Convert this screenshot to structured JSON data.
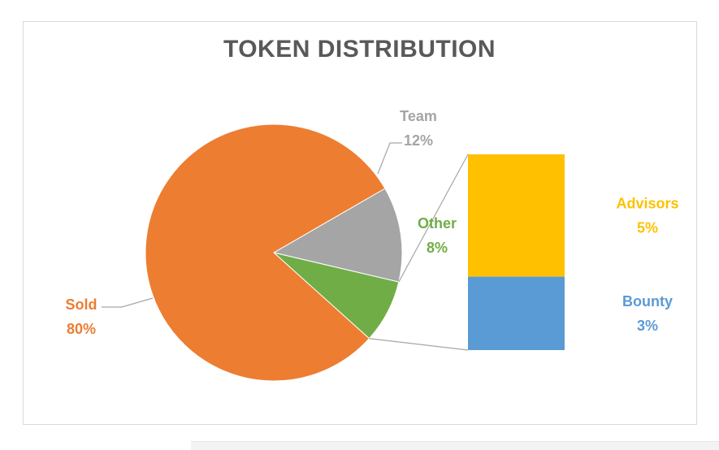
{
  "chart_data": {
    "type": "pie",
    "subtype": "bar-of-pie",
    "title": "TOKEN DISTRIBUTION",
    "slices": [
      {
        "label": "Team",
        "value": 12,
        "value_label": "12%",
        "color": "#a5a5a5"
      },
      {
        "label": "Other",
        "value": 8,
        "value_label": "8%",
        "color": "#70ad47"
      },
      {
        "label": "Sold",
        "value": 80,
        "value_label": "80%",
        "color": "#ed7d31"
      }
    ],
    "breakdown": {
      "of": "Other",
      "items": [
        {
          "label": "Advisors",
          "value": 5,
          "value_label": "5%",
          "color": "#ffc000"
        },
        {
          "label": "Bounty",
          "value": 3,
          "value_label": "3%",
          "color": "#5b9bd5"
        }
      ]
    },
    "colors": {
      "title": "#595959",
      "connector": "#a6a6a6",
      "border": "#d9d9d9"
    }
  }
}
